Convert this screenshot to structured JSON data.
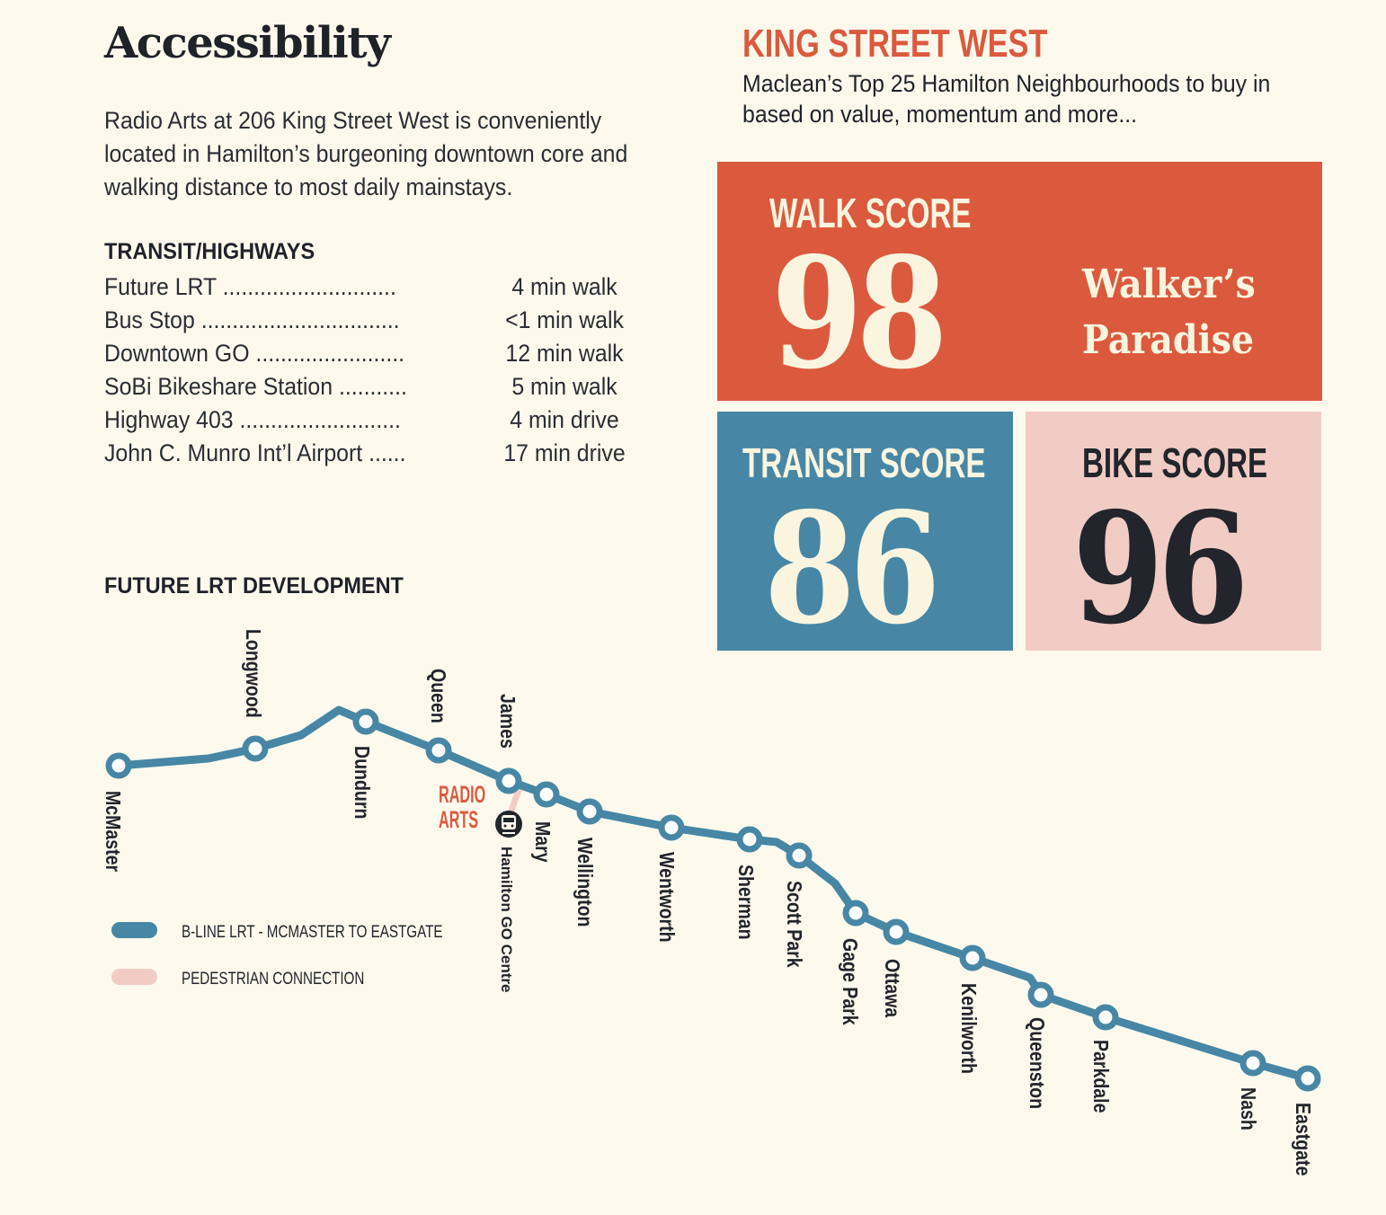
{
  "accessibility": {
    "title": "Accessibility",
    "intro": "Radio Arts at 206 King Street West is conveniently located in Hamilton’s burgeoning downtown core and walking distance to most daily mainstays.",
    "transit_heading": "TRANSIT/HIGHWAYS",
    "transit_items": [
      {
        "name": "Future LRT ............................",
        "time": "4 min walk"
      },
      {
        "name": "Bus Stop ................................",
        "time": "<1 min walk"
      },
      {
        "name": "Downtown GO ........................",
        "time": "12 min walk"
      },
      {
        "name": "SoBi Bikeshare Station ...........",
        "time": "5 min walk"
      },
      {
        "name": "Highway 403 ..........................",
        "time": "4 min drive"
      },
      {
        "name": "John C. Munro Int’l Airport ......",
        "time": "17 min drive"
      }
    ]
  },
  "neighbourhood": {
    "name": "KING STREET WEST",
    "subtitle": "Maclean’s Top 25 Hamilton Neighbourhoods to buy in based on value, momentum and more..."
  },
  "scores": {
    "walk": {
      "label": "WALK SCORE",
      "value": "98",
      "rating_line1": "Walker’s",
      "rating_line2": "Paradise",
      "color": "#db5a3e"
    },
    "transit": {
      "label": "TRANSIT SCORE",
      "value": "86",
      "color": "#4787a5"
    },
    "bike": {
      "label": "BIKE SCORE",
      "value": "96",
      "color": "#f1ccc5"
    }
  },
  "lrt_map": {
    "heading": "FUTURE LRT DEVELOPMENT",
    "line_color": "#4787a5",
    "pedestrian_color": "#f1ccc5",
    "stations": [
      "McMaster",
      "Longwood",
      "Dundurn",
      "Queen",
      "James",
      "Mary",
      "Wellington",
      "Wentworth",
      "Sherman",
      "Scott Park",
      "Gage Park",
      "Ottawa",
      "Kenilworth",
      "Queenston",
      "Parkdale",
      "Nash",
      "Eastgate"
    ],
    "go_station": "Hamilton GO Centre",
    "go_icon": "train-icon",
    "site_marker_line1": "RADIO",
    "site_marker_line2": "ARTS",
    "legend": [
      {
        "label": "B-LINE LRT - MCMASTER TO EASTGATE",
        "type": "lrt"
      },
      {
        "label": "PEDESTRIAN CONNECTION",
        "type": "pedestrian"
      }
    ]
  }
}
